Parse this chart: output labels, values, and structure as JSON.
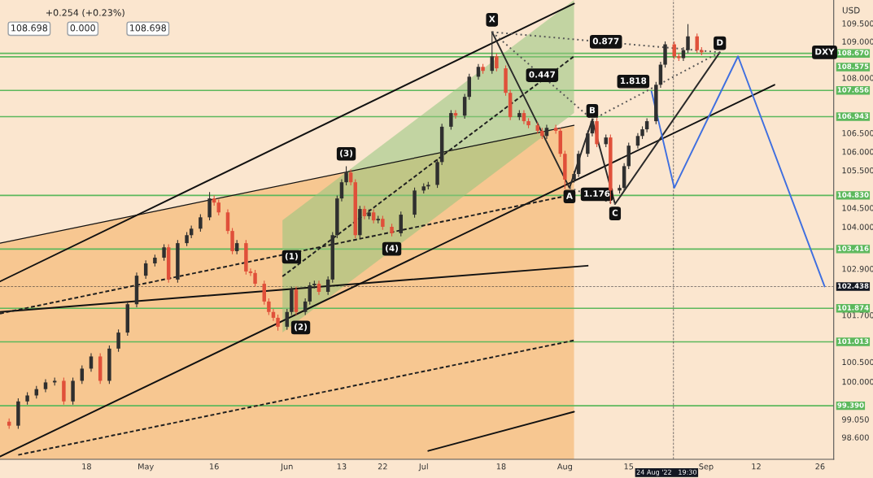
{
  "chart_data": {
    "type": "candlestick",
    "ylabel": "USD",
    "log": "y",
    "grid": false,
    "xlim": [
      "2022-03-30",
      "2022-09-29"
    ],
    "ylim": [
      98.05,
      110.15
    ],
    "xticks": [
      {
        "value": "2022-04-18",
        "label": "18"
      },
      {
        "value": "2022-05-01",
        "label": "May"
      },
      {
        "value": "2022-05-16",
        "label": "16"
      },
      {
        "value": "2022-06-01",
        "label": "Jun"
      },
      {
        "value": "2022-06-13",
        "label": "13"
      },
      {
        "value": "2022-06-22",
        "label": "22"
      },
      {
        "value": "2022-07-01",
        "label": "Jul"
      },
      {
        "value": "2022-07-18",
        "label": "18"
      },
      {
        "value": "2022-08-01",
        "label": "Aug"
      },
      {
        "value": "2022-08-15",
        "label": "15"
      },
      {
        "value": "2022-09-01",
        "label": "Sep"
      },
      {
        "value": "2022-09-12",
        "label": "12"
      },
      {
        "value": "2022-09-26",
        "label": "26"
      }
    ],
    "yticks": [
      {
        "value": 109.5,
        "label": "109.500"
      },
      {
        "value": 109.0,
        "label": "109.000"
      },
      {
        "value": 108.0,
        "label": "108.000"
      },
      {
        "value": 106.5,
        "label": "106.500"
      },
      {
        "value": 106.0,
        "label": "106.000"
      },
      {
        "value": 105.5,
        "label": "105.500"
      },
      {
        "value": 104.5,
        "label": "104.500"
      },
      {
        "value": 104.0,
        "label": "104.000"
      },
      {
        "value": 102.9,
        "label": "102.900"
      },
      {
        "value": 101.7,
        "label": "101.700"
      },
      {
        "value": 100.5,
        "label": "100.500"
      },
      {
        "value": 100.0,
        "label": "100.000"
      },
      {
        "value": 99.05,
        "label": "99.050"
      },
      {
        "value": 98.6,
        "label": "98.600"
      }
    ],
    "x": [
      "2022-04-01",
      "2022-04-03",
      "2022-04-05",
      "2022-04-07",
      "2022-04-09",
      "2022-04-11",
      "2022-04-13",
      "2022-04-15",
      "2022-04-17",
      "2022-04-19",
      "2022-04-21",
      "2022-04-23",
      "2022-04-25",
      "2022-04-27",
      "2022-04-29",
      "2022-05-01",
      "2022-05-03",
      "2022-05-05",
      "2022-05-06",
      "2022-05-08",
      "2022-05-10",
      "2022-05-11",
      "2022-05-13",
      "2022-05-15",
      "2022-05-16",
      "2022-05-17",
      "2022-05-19",
      "2022-05-20",
      "2022-05-21",
      "2022-05-23",
      "2022-05-24",
      "2022-05-25",
      "2022-05-27",
      "2022-05-28",
      "2022-05-29",
      "2022-05-30",
      "2022-06-01",
      "2022-06-02",
      "2022-06-03",
      "2022-06-05",
      "2022-06-06",
      "2022-06-07",
      "2022-06-08",
      "2022-06-10",
      "2022-06-11",
      "2022-06-12",
      "2022-06-13",
      "2022-06-14",
      "2022-06-15",
      "2022-06-16",
      "2022-06-17",
      "2022-06-18",
      "2022-06-19",
      "2022-06-20",
      "2022-06-21",
      "2022-06-22",
      "2022-06-24",
      "2022-06-26",
      "2022-06-29",
      "2022-07-01",
      "2022-07-02",
      "2022-07-04",
      "2022-07-05",
      "2022-07-07",
      "2022-07-08",
      "2022-07-10",
      "2022-07-11",
      "2022-07-13",
      "2022-07-14",
      "2022-07-16",
      "2022-07-17",
      "2022-07-19",
      "2022-07-20",
      "2022-07-22",
      "2022-07-23",
      "2022-07-24",
      "2022-07-26",
      "2022-07-27",
      "2022-07-28",
      "2022-07-30",
      "2022-07-31",
      "2022-08-01",
      "2022-08-03",
      "2022-08-04",
      "2022-08-06",
      "2022-08-07",
      "2022-08-08",
      "2022-08-10",
      "2022-08-11",
      "2022-08-13",
      "2022-08-14",
      "2022-08-15",
      "2022-08-17",
      "2022-08-18",
      "2022-08-19",
      "2022-08-21",
      "2022-08-22",
      "2022-08-23",
      "2022-08-25",
      "2022-08-26",
      "2022-08-27",
      "2022-08-28",
      "2022-08-30",
      "2022-08-31"
    ],
    "ohlc": [
      [
        98.99,
        99.07,
        98.81,
        98.89
      ],
      [
        98.89,
        99.58,
        98.81,
        99.5
      ],
      [
        99.5,
        99.73,
        99.42,
        99.65
      ],
      [
        99.65,
        99.89,
        99.57,
        99.81
      ],
      [
        99.81,
        100.06,
        99.73,
        99.98
      ],
      [
        99.98,
        100.1,
        99.9,
        100.02
      ],
      [
        100.02,
        100.1,
        99.42,
        99.5
      ],
      [
        99.5,
        100.1,
        99.42,
        100.02
      ],
      [
        100.02,
        100.41,
        99.94,
        100.33
      ],
      [
        100.33,
        100.72,
        100.25,
        100.64
      ],
      [
        100.64,
        100.72,
        99.94,
        100.02
      ],
      [
        100.02,
        100.92,
        99.94,
        100.84
      ],
      [
        100.84,
        101.33,
        100.76,
        101.25
      ],
      [
        101.25,
        102.06,
        101.17,
        101.98
      ],
      [
        101.98,
        102.8,
        101.9,
        102.72
      ],
      [
        102.72,
        103.12,
        102.64,
        103.04
      ],
      [
        103.04,
        103.27,
        102.96,
        103.19
      ],
      [
        103.19,
        103.54,
        103.11,
        103.46
      ],
      [
        103.46,
        103.54,
        102.54,
        102.62
      ],
      [
        102.62,
        103.65,
        102.54,
        103.57
      ],
      [
        103.57,
        103.86,
        103.49,
        103.78
      ],
      [
        103.78,
        104.03,
        103.7,
        103.95
      ],
      [
        103.95,
        104.33,
        103.87,
        104.25
      ],
      [
        104.25,
        104.92,
        104.17,
        104.75
      ],
      [
        104.75,
        104.83,
        104.56,
        104.64
      ],
      [
        104.64,
        104.72,
        104.3,
        104.38
      ],
      [
        104.38,
        104.46,
        103.81,
        103.89
      ],
      [
        103.89,
        103.97,
        103.28,
        103.36
      ],
      [
        103.36,
        103.65,
        103.28,
        103.57
      ],
      [
        103.57,
        103.65,
        102.75,
        102.83
      ],
      [
        102.83,
        102.91,
        102.71,
        102.79
      ],
      [
        102.79,
        102.87,
        102.43,
        102.51
      ],
      [
        102.51,
        102.59,
        101.97,
        102.05
      ],
      [
        102.05,
        102.13,
        101.7,
        101.78
      ],
      [
        101.78,
        101.86,
        101.55,
        101.63
      ],
      [
        101.63,
        101.71,
        101.3,
        101.4
      ],
      [
        101.4,
        101.86,
        101.32,
        101.78
      ],
      [
        101.78,
        102.44,
        101.7,
        102.36
      ],
      [
        102.36,
        102.44,
        101.7,
        101.78
      ],
      [
        101.78,
        102.13,
        101.7,
        102.05
      ],
      [
        102.05,
        102.55,
        101.97,
        102.47
      ],
      [
        102.47,
        102.59,
        102.39,
        102.51
      ],
      [
        102.51,
        102.59,
        102.22,
        102.3
      ],
      [
        102.3,
        102.7,
        102.22,
        102.62
      ],
      [
        102.62,
        103.86,
        102.54,
        103.78
      ],
      [
        103.78,
        104.83,
        103.7,
        104.75
      ],
      [
        104.75,
        105.26,
        104.67,
        105.18
      ],
      [
        105.18,
        105.61,
        105.1,
        105.44
      ],
      [
        105.44,
        105.52,
        105.1,
        105.18
      ],
      [
        105.18,
        105.26,
        103.7,
        103.78
      ],
      [
        103.78,
        104.55,
        103.7,
        104.47
      ],
      [
        104.47,
        104.55,
        104.2,
        104.28
      ],
      [
        104.28,
        104.46,
        104.2,
        104.38
      ],
      [
        104.38,
        104.46,
        104.09,
        104.17
      ],
      [
        104.17,
        104.29,
        104.09,
        104.21
      ],
      [
        104.21,
        104.29,
        103.92,
        104.0
      ],
      [
        104.0,
        104.08,
        103.75,
        103.83
      ],
      [
        103.83,
        104.4,
        103.75,
        104.32
      ],
      [
        104.32,
        105.04,
        104.24,
        104.96
      ],
      [
        104.96,
        105.15,
        104.88,
        105.07
      ],
      [
        105.07,
        105.19,
        104.99,
        105.11
      ],
      [
        105.11,
        105.8,
        105.03,
        105.72
      ],
      [
        105.72,
        106.75,
        105.64,
        106.67
      ],
      [
        106.67,
        107.12,
        106.59,
        107.04
      ],
      [
        107.04,
        107.12,
        106.89,
        106.97
      ],
      [
        106.97,
        107.56,
        106.89,
        107.48
      ],
      [
        107.48,
        108.11,
        107.4,
        108.03
      ],
      [
        108.03,
        108.38,
        107.95,
        108.3
      ],
      [
        108.3,
        108.38,
        108.11,
        108.19
      ],
      [
        108.19,
        109.26,
        108.11,
        108.59
      ],
      [
        108.59,
        108.67,
        108.18,
        108.26
      ],
      [
        108.26,
        108.34,
        107.51,
        107.59
      ],
      [
        107.59,
        107.67,
        106.85,
        106.93
      ],
      [
        106.93,
        107.12,
        106.85,
        107.04
      ],
      [
        107.04,
        107.12,
        106.74,
        106.82
      ],
      [
        106.82,
        106.9,
        106.63,
        106.71
      ],
      [
        106.71,
        106.79,
        106.48,
        106.56
      ],
      [
        106.56,
        106.64,
        106.34,
        106.42
      ],
      [
        106.42,
        106.72,
        106.34,
        106.64
      ],
      [
        106.64,
        106.72,
        106.48,
        106.56
      ],
      [
        106.56,
        106.64,
        105.86,
        105.94
      ],
      [
        105.94,
        106.02,
        105.0,
        105.25
      ],
      [
        105.25,
        105.48,
        105.17,
        105.4
      ],
      [
        105.4,
        106.02,
        105.32,
        105.94
      ],
      [
        105.94,
        106.57,
        105.86,
        106.49
      ],
      [
        106.49,
        106.9,
        106.41,
        106.82
      ],
      [
        106.82,
        106.9,
        106.12,
        106.2
      ],
      [
        106.2,
        106.46,
        106.12,
        106.38
      ],
      [
        106.38,
        106.46,
        104.6,
        104.96
      ],
      [
        104.96,
        105.11,
        104.88,
        105.03
      ],
      [
        105.03,
        105.69,
        104.95,
        105.61
      ],
      [
        105.61,
        106.24,
        105.53,
        106.16
      ],
      [
        106.16,
        106.5,
        106.08,
        106.42
      ],
      [
        106.42,
        106.68,
        106.34,
        106.6
      ],
      [
        106.6,
        106.9,
        106.52,
        106.82
      ],
      [
        106.82,
        107.89,
        106.74,
        107.81
      ],
      [
        107.81,
        108.44,
        107.73,
        108.36
      ],
      [
        108.36,
        109.0,
        108.28,
        108.92
      ],
      [
        108.92,
        109.0,
        108.51,
        108.59
      ],
      [
        108.59,
        108.67,
        108.46,
        108.54
      ],
      [
        108.54,
        108.84,
        108.46,
        108.76
      ],
      [
        108.76,
        109.48,
        108.68,
        109.14
      ],
      [
        109.14,
        109.22,
        108.68,
        108.76
      ],
      [
        108.76,
        108.84,
        108.62,
        108.7
      ]
    ],
    "colors": [
      "#e0503a",
      "#2f2f2f",
      "#2f2f2f",
      "#2f2f2f",
      "#2f2f2f",
      "#2f2f2f",
      "#e0503a",
      "#2f2f2f",
      "#2f2f2f",
      "#2f2f2f",
      "#e0503a",
      "#2f2f2f",
      "#2f2f2f",
      "#2f2f2f",
      "#2f2f2f",
      "#2f2f2f",
      "#2f2f2f",
      "#2f2f2f",
      "#e0503a",
      "#2f2f2f",
      "#2f2f2f",
      "#2f2f2f",
      "#2f2f2f",
      "#2f2f2f",
      "#e0503a",
      "#e0503a",
      "#e0503a",
      "#e0503a",
      "#2f2f2f",
      "#e0503a",
      "#e0503a",
      "#e0503a",
      "#e0503a",
      "#e0503a",
      "#e0503a",
      "#e0503a",
      "#2f2f2f",
      "#2f2f2f",
      "#e0503a",
      "#2f2f2f",
      "#2f2f2f",
      "#2f2f2f",
      "#e0503a",
      "#2f2f2f",
      "#2f2f2f",
      "#2f2f2f",
      "#2f2f2f",
      "#2f2f2f",
      "#e0503a",
      "#e0503a",
      "#2f2f2f",
      "#e0503a",
      "#2f2f2f",
      "#e0503a",
      "#2f2f2f",
      "#e0503a",
      "#e0503a",
      "#2f2f2f",
      "#2f2f2f",
      "#2f2f2f",
      "#2f2f2f",
      "#2f2f2f",
      "#2f2f2f",
      "#2f2f2f",
      "#e0503a",
      "#2f2f2f",
      "#2f2f2f",
      "#2f2f2f",
      "#e0503a",
      "#2f2f2f",
      "#e0503a",
      "#e0503a",
      "#e0503a",
      "#2f2f2f",
      "#e0503a",
      "#e0503a",
      "#e0503a",
      "#e0503a",
      "#2f2f2f",
      "#e0503a",
      "#e0503a",
      "#e0503a",
      "#2f2f2f",
      "#2f2f2f",
      "#2f2f2f",
      "#2f2f2f",
      "#e0503a",
      "#2f2f2f",
      "#e0503a",
      "#2f2f2f",
      "#2f2f2f",
      "#2f2f2f",
      "#2f2f2f",
      "#2f2f2f",
      "#2f2f2f",
      "#2f2f2f",
      "#2f2f2f",
      "#2f2f2f",
      "#e0503a",
      "#e0503a",
      "#2f2f2f",
      "#2f2f2f",
      "#e0503a",
      "#e0503a"
    ],
    "series": [
      {
        "type": "area",
        "x": [
          "2022-03-30",
          "2022-08-03"
        ],
        "values": [
          103.57,
          106.71
        ],
        "color": "#f7c791"
      },
      {
        "type": "line",
        "x": [
          "2022-05-31",
          "2022-08-03"
        ],
        "values": [
          102.7,
          108.59
        ],
        "lower": [
          101.25,
          107.04
        ],
        "upper": [
          104.17,
          110.15
        ],
        "color": "#1f1f1f",
        "line_style": "dashed"
      },
      {
        "type": "line",
        "x": [
          "2022-03-30",
          "2022-08-03"
        ],
        "values": [
          102.57,
          110.05
        ],
        "color": "#111111"
      },
      {
        "type": "line",
        "x": [
          "2022-03-30",
          "2022-09-16"
        ],
        "values": [
          98.12,
          107.81
        ],
        "color": "#111111"
      },
      {
        "type": "line",
        "x": [
          "2022-03-30",
          "2022-08-06"
        ],
        "values": [
          101.78,
          102.98
        ],
        "color": "#111111"
      },
      {
        "type": "line",
        "x": [
          "2022-07-02",
          "2022-08-03"
        ],
        "values": [
          98.26,
          99.24
        ],
        "color": "#111111"
      },
      {
        "type": "line",
        "x": [
          "2022-03-30",
          "2022-08-03"
        ],
        "values": [
          101.74,
          104.86
        ],
        "color": "#1f1f1f",
        "line_style": "dashed"
      },
      {
        "type": "line",
        "x": [
          "2022-04-03",
          "2022-08-03"
        ],
        "values": [
          98.16,
          101.05
        ],
        "color": "#1f1f1f",
        "line_style": "dashed"
      },
      {
        "type": "line",
        "x": [
          "2022-07-16",
          "2022-08-02",
          "2022-08-07",
          "2022-08-12",
          "2022-09-04"
        ],
        "values": [
          109.26,
          105.03,
          106.86,
          104.6,
          108.7
        ],
        "color": "#2a2a2a"
      },
      {
        "type": "line",
        "x": [
          "2022-07-16",
          "2022-09-04"
        ],
        "values": [
          109.26,
          108.7
        ],
        "color": "#555555",
        "line_style": "dotted"
      },
      {
        "type": "line",
        "x": [
          "2022-07-16",
          "2022-08-07"
        ],
        "values": [
          109.26,
          106.86
        ],
        "color": "#555555",
        "line_style": "dotted"
      },
      {
        "type": "line",
        "x": [
          "2022-08-02",
          "2022-08-12"
        ],
        "values": [
          105.03,
          104.6
        ],
        "color": "#555555",
        "line_style": "dotted"
      },
      {
        "type": "line",
        "x": [
          "2022-08-07",
          "2022-09-04"
        ],
        "values": [
          106.86,
          108.7
        ],
        "color": "#555555",
        "line_style": "dotted"
      },
      {
        "type": "line",
        "x": [
          "2022-08-20",
          "2022-08-25",
          "2022-09-08",
          "2022-09-27"
        ],
        "values": [
          107.63,
          105.03,
          108.59,
          102.44
        ],
        "color": "#3f6fe0"
      }
    ],
    "ref_lines": [
      {
        "axis": "y",
        "value": 108.67,
        "label": "108.670",
        "color": "#5cb85c"
      },
      {
        "axis": "y",
        "value": 108.575,
        "label": "108.575",
        "color": "#5cb85c"
      },
      {
        "axis": "y",
        "value": 107.656,
        "label": "107.656",
        "color": "#5cb85c"
      },
      {
        "axis": "y",
        "value": 106.943,
        "label": "106.943",
        "color": "#5cb85c"
      },
      {
        "axis": "y",
        "value": 104.83,
        "label": "104.830",
        "color": "#5cb85c"
      },
      {
        "axis": "y",
        "value": 103.416,
        "label": "103.416",
        "color": "#5cb85c"
      },
      {
        "axis": "y",
        "value": 101.874,
        "label": "101.874",
        "color": "#5cb85c"
      },
      {
        "axis": "y",
        "value": 101.013,
        "label": "101.013",
        "color": "#5cb85c"
      },
      {
        "axis": "y",
        "value": 99.39,
        "label": "99.390",
        "color": "#5cb85c"
      },
      {
        "axis": "y",
        "value": 102.438,
        "label": "102.438",
        "color": "#131722",
        "line_style": "dashed"
      },
      {
        "axis": "x",
        "value": "2022-08-24T19:30",
        "label": "24 Aug '22   19:30",
        "color": "#131722",
        "line_style": "dashed"
      }
    ],
    "annotations": [
      "+0.254 (+0.23%)",
      "108.698",
      "0.000",
      "108.698",
      {
        "text": "X",
        "x": "2022-07-16",
        "y": 109.6
      },
      {
        "text": "A",
        "x": "2022-08-02",
        "y": 104.8
      },
      {
        "text": "B",
        "x": "2022-08-07",
        "y": 107.1
      },
      {
        "text": "C",
        "x": "2022-08-12",
        "y": 104.35
      },
      {
        "text": "D",
        "x": "2022-09-04",
        "y": 108.95
      },
      {
        "text": "0.877",
        "x": "2022-08-10",
        "y": 108.99
      },
      {
        "text": "0.447",
        "x": "2022-07-27",
        "y": 108.07
      },
      {
        "text": "1.818",
        "x": "2022-08-16",
        "y": 107.9
      },
      {
        "text": "1.176",
        "x": "2022-08-08",
        "y": 104.86
      },
      {
        "text": "(3)",
        "x": "2022-06-14",
        "y": 105.94
      },
      {
        "text": "(4)",
        "x": "2022-06-24",
        "y": 103.42
      },
      {
        "text": "(2)",
        "x": "2022-06-04",
        "y": 101.38
      },
      {
        "text": "(1)",
        "x": "2022-06-02",
        "y": 103.21
      },
      {
        "text": "DXY",
        "x": "2022-09-27",
        "y": 108.698
      }
    ]
  }
}
